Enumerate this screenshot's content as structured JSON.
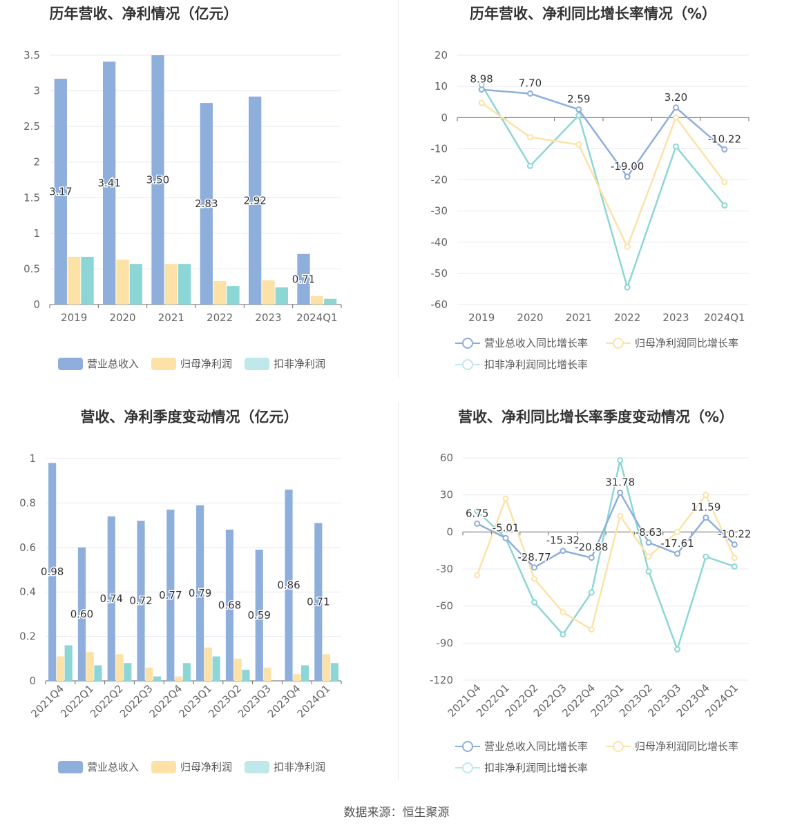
{
  "colors": {
    "revenue": "#8eaedb",
    "parent_profit": "#fde2a8",
    "deducted_profit": "#8dd6d6",
    "revenue_line": "#8eaedb",
    "parent_line": "#fde2a8",
    "deducted_line": "#8dd6d6"
  },
  "legend": {
    "bar_labels": [
      "营业总收入",
      "归母净利润",
      "扣非净利润"
    ],
    "line_labels": [
      "营业总收入同比增长率",
      "归母净利润同比增长率",
      "扣非净利润同比增长率"
    ]
  },
  "source": "数据来源：恒生聚源",
  "chart_data": [
    {
      "id": "annual_bar",
      "type": "bar",
      "title": "历年营收、净利情况（亿元）",
      "categories": [
        "2019",
        "2020",
        "2021",
        "2022",
        "2023",
        "2024Q1"
      ],
      "ylim": [
        0,
        3.5
      ],
      "yticks": [
        "0",
        "0.5",
        "1",
        "1.5",
        "2",
        "2.5",
        "3",
        "3.5"
      ],
      "series": [
        {
          "name": "营业总收入",
          "values": [
            3.17,
            3.41,
            3.5,
            2.83,
            2.92,
            0.71
          ],
          "labels": [
            "3.17",
            "3.41",
            "3.50",
            "2.83",
            "2.92",
            "0.71"
          ]
        },
        {
          "name": "归母净利润",
          "values": [
            0.67,
            0.63,
            0.57,
            0.33,
            0.34,
            0.12
          ]
        },
        {
          "name": "扣非净利润",
          "values": [
            0.67,
            0.57,
            0.57,
            0.26,
            0.24,
            0.08
          ]
        }
      ],
      "legend_position": "bottom"
    },
    {
      "id": "annual_line",
      "type": "line",
      "title": "历年营收、净利同比增长率情况（%）",
      "categories": [
        "2019",
        "2020",
        "2021",
        "2022",
        "2023",
        "2024Q1"
      ],
      "ylim": [
        -60,
        20
      ],
      "yticks": [
        "-60",
        "-50",
        "-40",
        "-30",
        "-20",
        "-10",
        "0",
        "10",
        "20"
      ],
      "series": [
        {
          "name": "营业总收入同比增长率",
          "values": [
            8.98,
            7.7,
            2.59,
            -19.0,
            3.2,
            -10.22
          ],
          "labels": [
            "8.98",
            "7.70",
            "2.59",
            "-19.00",
            "3.20",
            "-10.22"
          ]
        },
        {
          "name": "归母净利润同比增长率",
          "values": [
            4.7,
            -6.3,
            -8.7,
            -41.5,
            0,
            -20.7
          ]
        },
        {
          "name": "扣非净利润同比增长率",
          "values": [
            10.5,
            -15.5,
            0.7,
            -54.5,
            -9.3,
            -28.2
          ]
        }
      ],
      "legend_position": "bottom"
    },
    {
      "id": "quarter_bar",
      "type": "bar",
      "title": "营收、净利季度变动情况（亿元）",
      "categories": [
        "2021Q4",
        "2022Q1",
        "2022Q2",
        "2022Q3",
        "2022Q4",
        "2023Q1",
        "2023Q2",
        "2023Q3",
        "2023Q4",
        "2024Q1"
      ],
      "ylim": [
        0,
        1
      ],
      "yticks": [
        "0",
        "0.2",
        "0.4",
        "0.6",
        "0.8",
        "1"
      ],
      "series": [
        {
          "name": "营业总收入",
          "values": [
            0.98,
            0.6,
            0.74,
            0.72,
            0.77,
            0.79,
            0.68,
            0.59,
            0.86,
            0.71
          ],
          "labels": [
            "0.98",
            "0.60",
            "0.74",
            "0.72",
            "0.77",
            "0.79",
            "0.68",
            "0.59",
            "0.86",
            "0.71"
          ]
        },
        {
          "name": "归母净利润",
          "values": [
            0.11,
            0.13,
            0.12,
            0.06,
            0.02,
            0.15,
            0.1,
            0.06,
            0.03,
            0.12
          ]
        },
        {
          "name": "扣非净利润",
          "values": [
            0.16,
            0.07,
            0.08,
            0.02,
            0.08,
            0.11,
            0.05,
            0.0,
            0.07,
            0.08
          ]
        }
      ],
      "legend_position": "bottom"
    },
    {
      "id": "quarter_line",
      "type": "line",
      "title": "营收、净利同比增长率季度变动情况（%）",
      "categories": [
        "2021Q4",
        "2022Q1",
        "2022Q2",
        "2022Q3",
        "2022Q4",
        "2023Q1",
        "2023Q2",
        "2023Q3",
        "2023Q4",
        "2024Q1"
      ],
      "ylim": [
        -120,
        60
      ],
      "yticks": [
        "-120",
        "-90",
        "-60",
        "-30",
        "0",
        "30",
        "60"
      ],
      "series": [
        {
          "name": "营业总收入同比增长率",
          "values": [
            6.75,
            -5.01,
            -28.77,
            -15.32,
            -20.88,
            31.78,
            -8.63,
            -17.61,
            11.59,
            -10.22
          ],
          "labels": [
            "6.75",
            "-5.01",
            "-28.77",
            "-15.32",
            "-20.88",
            "31.78",
            "-8.63",
            "-17.61",
            "11.59",
            "-10.22"
          ]
        },
        {
          "name": "归母净利润同比增长率",
          "values": [
            -35,
            27,
            -38,
            -65,
            -79,
            13,
            -20,
            0,
            30,
            -21
          ]
        },
        {
          "name": "扣非净利润同比增长率",
          "values": [
            17,
            -5,
            -57,
            -83,
            -49,
            58,
            -32,
            -95,
            -20,
            -28
          ]
        }
      ],
      "legend_position": "bottom"
    }
  ]
}
